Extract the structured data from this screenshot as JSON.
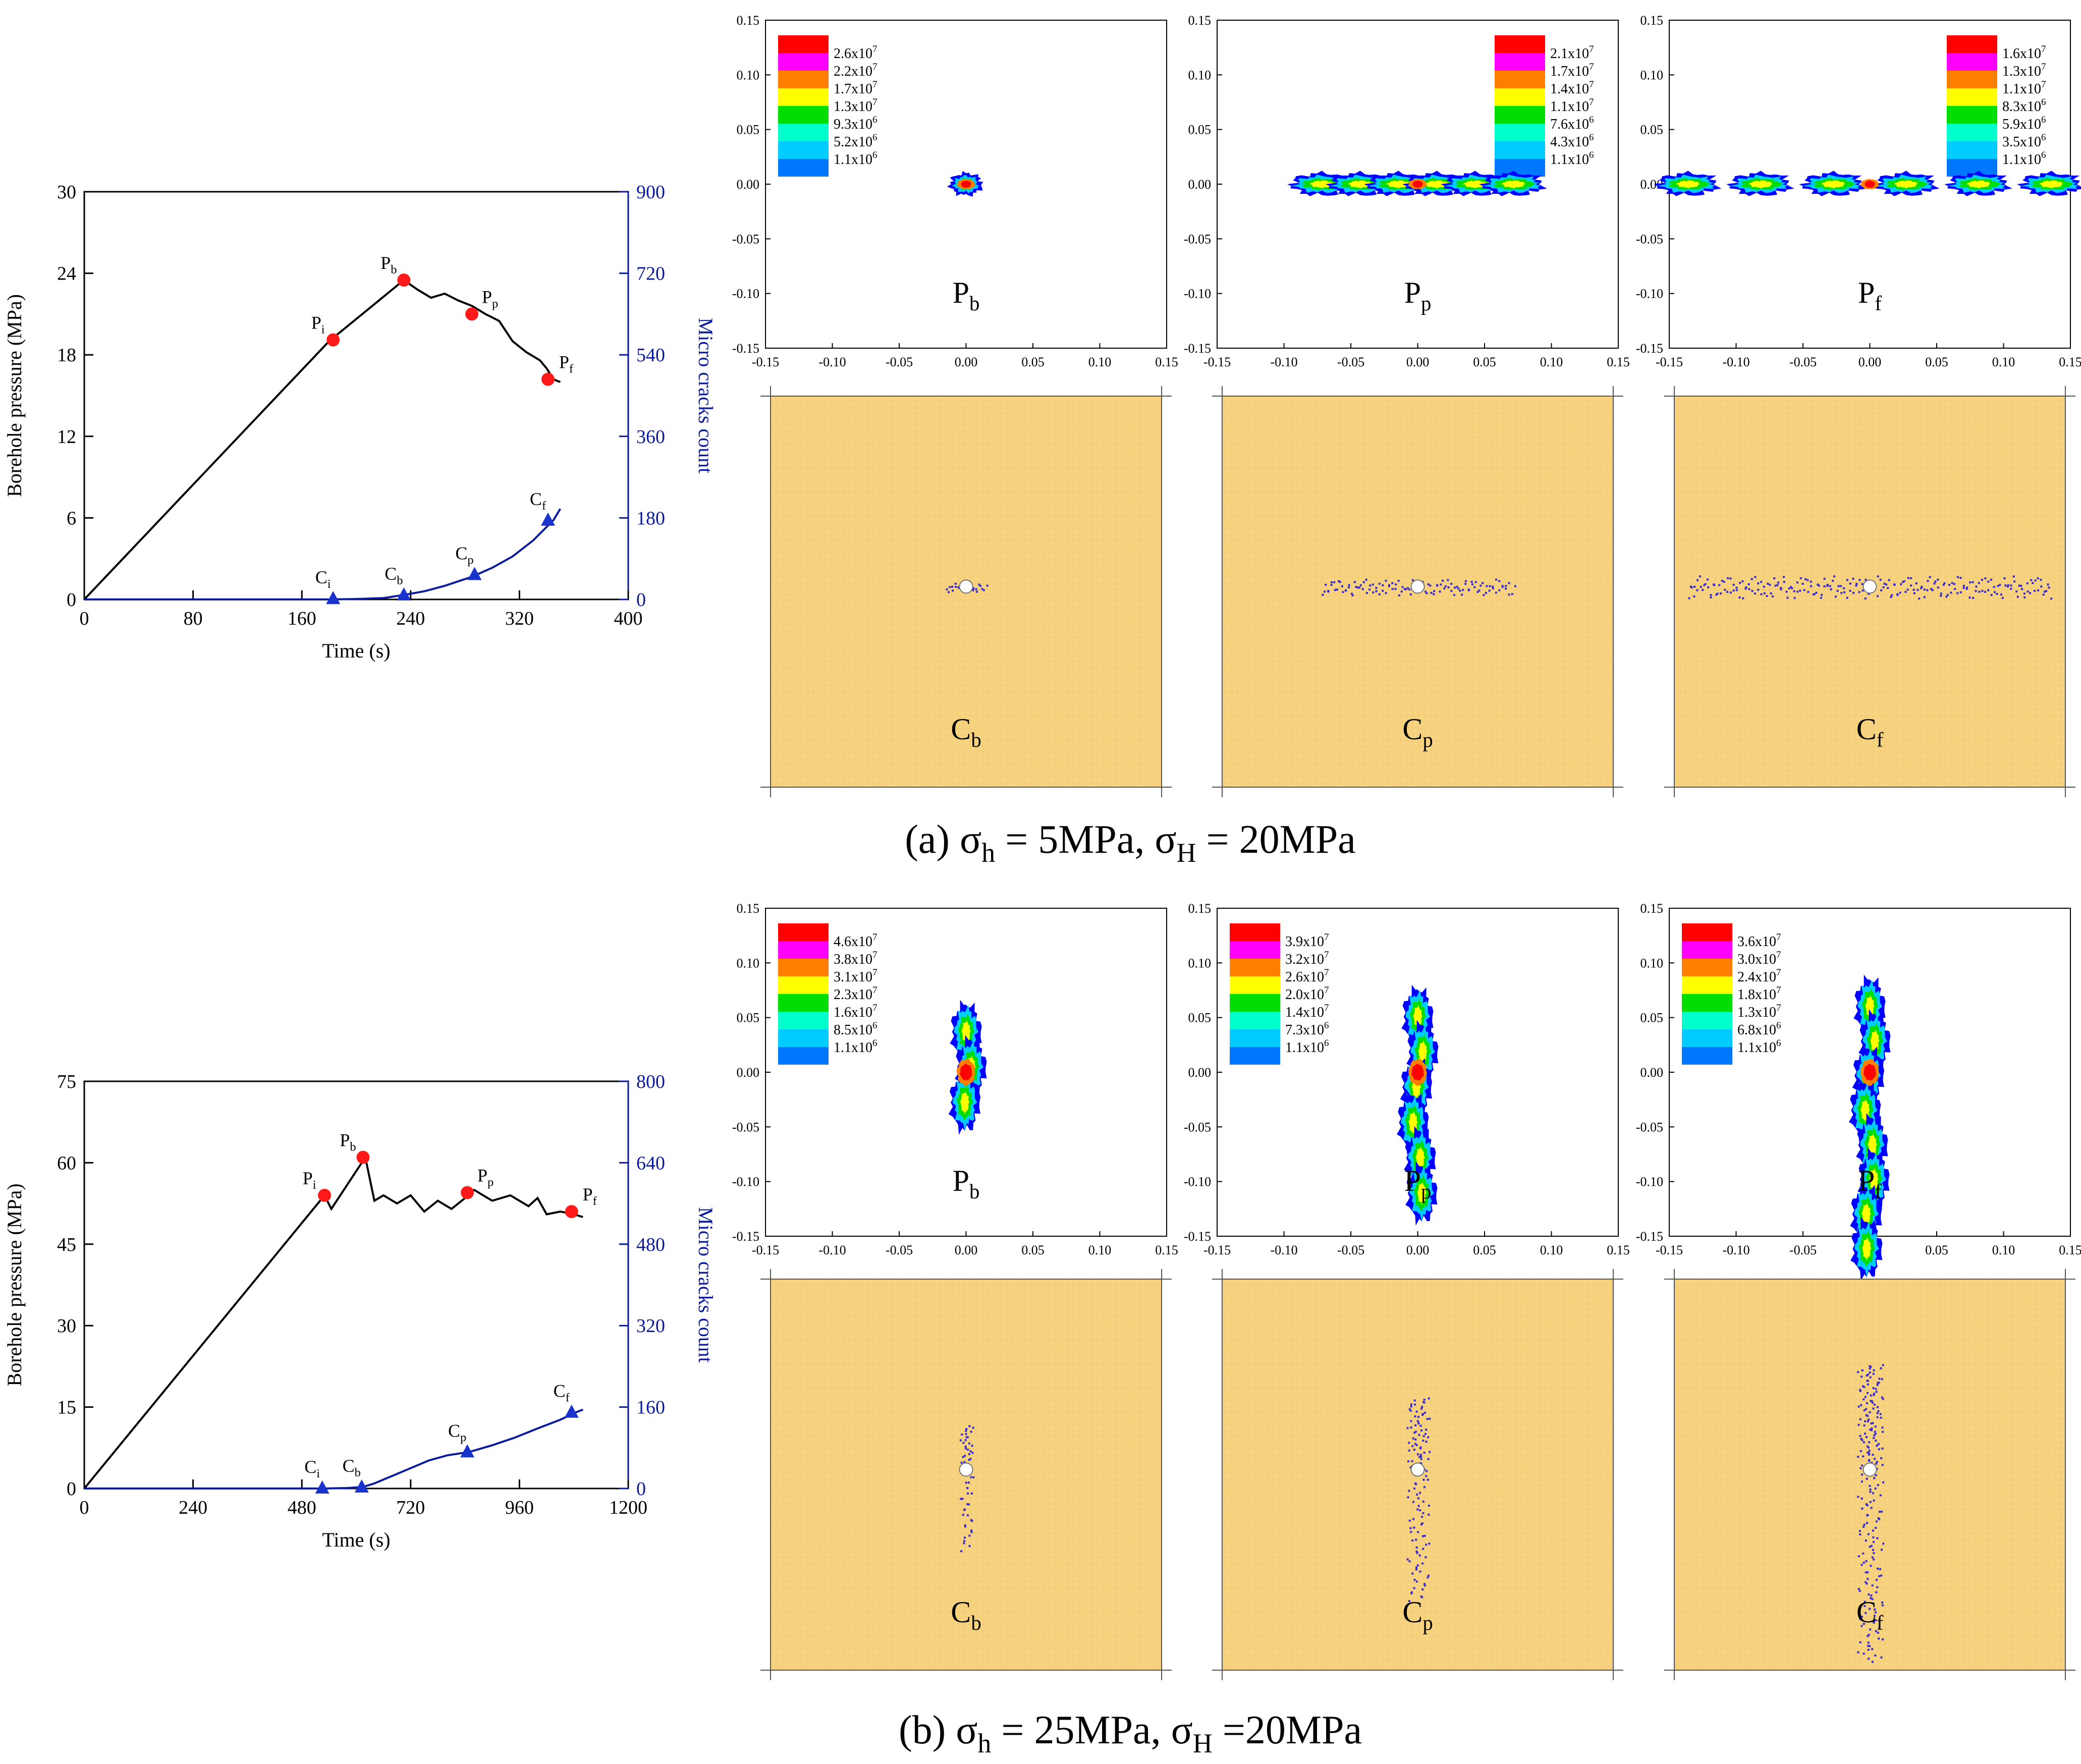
{
  "panels": [
    {
      "id": "a",
      "caption": "(a) σh = 5MPa, σH = 20MPa",
      "caption_parts": [
        "(a) σ",
        "h",
        " = 5MPa, σ",
        "H",
        " = 20MPa"
      ],
      "chart": {
        "type": "line",
        "x_label": "Time (s)",
        "y_left_label": "Borehole pressure (MPa)",
        "y_right_label": "Micro cracks count",
        "x_ticks": [
          "0",
          "80",
          "160",
          "240",
          "320",
          "400"
        ],
        "y_left_ticks": [
          "0",
          "6",
          "12",
          "18",
          "24",
          "30"
        ],
        "y_right_ticks": [
          "0",
          "180",
          "360",
          "540",
          "720",
          "900"
        ]
      },
      "contours": [
        {
          "label_main": "P",
          "label_sub": "b",
          "legend": [
            "2.6x10^7",
            "2.2x10^7",
            "1.7x10^7",
            "1.3x10^7",
            "9.3x10^6",
            "5.2x10^6",
            "1.1x10^6"
          ]
        },
        {
          "label_main": "P",
          "label_sub": "p",
          "legend": [
            "2.1x10^7",
            "1.7x10^7",
            "1.4x10^7",
            "1.1x10^7",
            "7.6x10^6",
            "4.3x10^6",
            "1.1x10^6"
          ]
        },
        {
          "label_main": "P",
          "label_sub": "f",
          "legend": [
            "1.6x10^7",
            "1.3x10^7",
            "1.1x10^7",
            "8.3x10^6",
            "5.9x10^6",
            "3.5x10^6",
            "1.1x10^6"
          ]
        }
      ],
      "crack_labels": [
        {
          "main": "C",
          "sub": "b"
        },
        {
          "main": "C",
          "sub": "p"
        },
        {
          "main": "C",
          "sub": "f"
        }
      ]
    },
    {
      "id": "b",
      "caption": "(b) σh = 25MPa, σH =20MPa",
      "caption_parts": [
        "(b) σ",
        "h",
        " = 25MPa, σ",
        "H",
        " =20MPa"
      ],
      "chart": {
        "type": "line",
        "x_label": "Time (s)",
        "y_left_label": "Borehole pressure (MPa)",
        "y_right_label": "Micro cracks count",
        "x_ticks": [
          "0",
          "240",
          "480",
          "720",
          "960",
          "1200"
        ],
        "y_left_ticks": [
          "0",
          "15",
          "30",
          "45",
          "60",
          "75"
        ],
        "y_right_ticks": [
          "0",
          "160",
          "320",
          "480",
          "640",
          "800"
        ]
      },
      "contours": [
        {
          "label_main": "P",
          "label_sub": "b",
          "legend": [
            "4.6x10^7",
            "3.8x10^7",
            "3.1x10^7",
            "2.3x10^7",
            "1.6x10^7",
            "8.5x10^6",
            "1.1x10^6"
          ]
        },
        {
          "label_main": "P",
          "label_sub": "p",
          "legend": [
            "3.9x10^7",
            "3.2x10^7",
            "2.6x10^7",
            "2.0x10^7",
            "1.4x10^7",
            "7.3x10^6",
            "1.1x10^6"
          ]
        },
        {
          "label_main": "P",
          "label_sub": "f",
          "legend": [
            "3.6x10^7",
            "3.0x10^7",
            "2.4x10^7",
            "1.8x10^7",
            "1.3x10^7",
            "6.8x10^6",
            "1.1x10^6"
          ]
        }
      ],
      "crack_labels": [
        {
          "main": "C",
          "sub": "b"
        },
        {
          "main": "C",
          "sub": "p"
        },
        {
          "main": "C",
          "sub": "f"
        }
      ]
    }
  ],
  "contour_axis_ticks": [
    "-0.15",
    "-0.10",
    "-0.05",
    "0.00",
    "0.05",
    "0.10",
    "0.15"
  ],
  "legend_colors": [
    "#ff0000",
    "#ff00ff",
    "#ff8000",
    "#ffff00",
    "#00dd00",
    "#00ffcc",
    "#00ccff",
    "#0077ff",
    "#0000ff"
  ],
  "colors": {
    "pressure": "#000000",
    "cracks": "#0a1a9a",
    "marker_red": "#ff1a1a",
    "marker_blue": "#1a33cc",
    "rock": "#f6d27e",
    "crack_dots": "#3a2ad0"
  },
  "chart_data": [
    {
      "type": "line",
      "title": "",
      "xlabel": "Time (s)",
      "ylabel": "Borehole pressure (MPa)",
      "y2label": "Micro cracks count",
      "xlim": [
        0,
        400
      ],
      "ylim": [
        0,
        30
      ],
      "y2lim": [
        0,
        900
      ],
      "series": [
        {
          "name": "Borehole pressure",
          "axis": "left",
          "x": [
            0,
            180,
            235,
            245,
            255,
            265,
            275,
            285,
            295,
            305,
            315,
            325,
            335,
            340,
            345,
            350
          ],
          "y": [
            0,
            19,
            23.5,
            22.8,
            22.2,
            22.5,
            22.0,
            21.6,
            21.0,
            20.5,
            19.0,
            18.2,
            17.6,
            17.0,
            16.2,
            16.0
          ]
        },
        {
          "name": "Micro cracks count",
          "axis": "right",
          "x": [
            0,
            180,
            200,
            220,
            235,
            250,
            265,
            285,
            300,
            315,
            330,
            345,
            350
          ],
          "y": [
            0,
            0,
            1,
            3,
            10,
            18,
            30,
            50,
            70,
            95,
            130,
            175,
            200
          ]
        }
      ],
      "markers": [
        {
          "label_main": "P",
          "label_sub": "i",
          "axis": "left",
          "x": 183,
          "y": 19.1
        },
        {
          "label_main": "P",
          "label_sub": "b",
          "axis": "left",
          "x": 235,
          "y": 23.5
        },
        {
          "label_main": "P",
          "label_sub": "p",
          "axis": "left",
          "x": 285,
          "y": 21.0
        },
        {
          "label_main": "P",
          "label_sub": "f",
          "axis": "left",
          "x": 341,
          "y": 16.2
        },
        {
          "label_main": "C",
          "label_sub": "i",
          "axis": "right",
          "x": 183,
          "y": 2
        },
        {
          "label_main": "C",
          "label_sub": "b",
          "axis": "right",
          "x": 235,
          "y": 10
        },
        {
          "label_main": "C",
          "label_sub": "p",
          "axis": "right",
          "x": 287,
          "y": 55
        },
        {
          "label_main": "C",
          "label_sub": "f",
          "axis": "right",
          "x": 341,
          "y": 175
        }
      ]
    },
    {
      "type": "line",
      "title": "",
      "xlabel": "Time (s)",
      "ylabel": "Borehole pressure (MPa)",
      "y2label": "Micro cracks count",
      "xlim": [
        0,
        1200
      ],
      "ylim": [
        0,
        75
      ],
      "y2lim": [
        0,
        800
      ],
      "series": [
        {
          "name": "Borehole pressure",
          "axis": "left",
          "x": [
            0,
            530,
            545,
            620,
            640,
            660,
            690,
            720,
            750,
            780,
            810,
            840,
            860,
            880,
            900,
            940,
            980,
            1000,
            1020,
            1050,
            1080,
            1100
          ],
          "y": [
            0,
            54,
            51.5,
            61,
            53,
            54,
            52.5,
            54,
            51,
            53,
            51.5,
            53.5,
            55,
            54,
            53,
            54,
            52,
            53.5,
            50.5,
            51,
            50.5,
            50
          ]
        },
        {
          "name": "Micro cracks count",
          "axis": "right",
          "x": [
            0,
            530,
            580,
            615,
            640,
            680,
            720,
            760,
            800,
            850,
            900,
            950,
            1000,
            1050,
            1080,
            1100
          ],
          "y": [
            0,
            0,
            1,
            3,
            10,
            25,
            40,
            55,
            65,
            72,
            85,
            100,
            118,
            135,
            148,
            155
          ]
        }
      ],
      "markers": [
        {
          "label_main": "P",
          "label_sub": "i",
          "axis": "left",
          "x": 530,
          "y": 54
        },
        {
          "label_main": "P",
          "label_sub": "b",
          "axis": "left",
          "x": 615,
          "y": 61
        },
        {
          "label_main": "P",
          "label_sub": "p",
          "axis": "left",
          "x": 845,
          "y": 54.5
        },
        {
          "label_main": "P",
          "label_sub": "f",
          "axis": "left",
          "x": 1075,
          "y": 51
        },
        {
          "label_main": "C",
          "label_sub": "i",
          "axis": "right",
          "x": 525,
          "y": 1
        },
        {
          "label_main": "C",
          "label_sub": "b",
          "axis": "right",
          "x": 612,
          "y": 3
        },
        {
          "label_main": "C",
          "label_sub": "p",
          "axis": "right",
          "x": 845,
          "y": 72
        },
        {
          "label_main": "C",
          "label_sub": "f",
          "axis": "right",
          "x": 1075,
          "y": 150
        }
      ]
    }
  ]
}
